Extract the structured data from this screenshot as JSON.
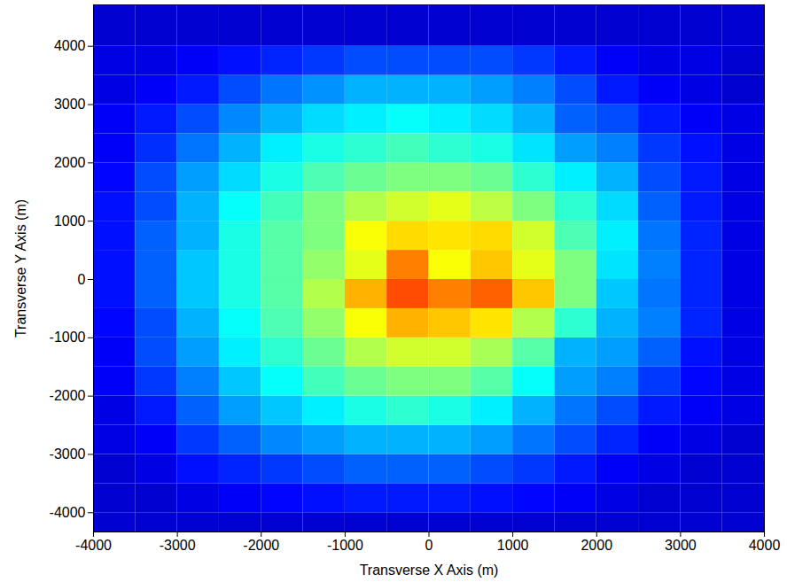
{
  "chart_data": {
    "type": "heatmap",
    "x_label": "Transverse X Axis (m)",
    "y_label": "Transverse Y Axis (m)",
    "xlim": [
      -4000,
      4000
    ],
    "ylim": [
      -4330,
      4710
    ],
    "xticks": [
      -4000,
      -3000,
      -2000,
      -1000,
      0,
      1000,
      2000,
      3000,
      4000
    ],
    "yticks": [
      -4000,
      -3000,
      -2000,
      -1000,
      0,
      1000,
      2000,
      3000,
      4000
    ],
    "x_edges": [
      -4000,
      -3500,
      -3000,
      -2500,
      -2000,
      -1500,
      -1000,
      -500,
      0,
      500,
      1000,
      1500,
      2000,
      2500,
      3000,
      3500,
      4000
    ],
    "y_edges": [
      -4500,
      -4000,
      -3500,
      -3000,
      -2500,
      -2000,
      -1500,
      -1000,
      -500,
      0,
      500,
      1000,
      1500,
      2000,
      2500,
      3000,
      3500,
      4000,
      4750
    ],
    "zlim": [
      0,
      1
    ],
    "z": [
      [
        0.08,
        0.08,
        0.08,
        0.08,
        0.08,
        0.08,
        0.08,
        0.08,
        0.08,
        0.08,
        0.08,
        0.08,
        0.08,
        0.08,
        0.08,
        0.08
      ],
      [
        0.08,
        0.08,
        0.1,
        0.12,
        0.13,
        0.14,
        0.15,
        0.15,
        0.15,
        0.14,
        0.13,
        0.12,
        0.1,
        0.08,
        0.08,
        0.08
      ],
      [
        0.08,
        0.1,
        0.14,
        0.16,
        0.18,
        0.2,
        0.22,
        0.22,
        0.22,
        0.2,
        0.18,
        0.15,
        0.12,
        0.1,
        0.08,
        0.08
      ],
      [
        0.1,
        0.12,
        0.18,
        0.22,
        0.26,
        0.28,
        0.3,
        0.3,
        0.3,
        0.28,
        0.24,
        0.2,
        0.16,
        0.12,
        0.1,
        0.08
      ],
      [
        0.1,
        0.15,
        0.22,
        0.28,
        0.32,
        0.36,
        0.4,
        0.42,
        0.4,
        0.36,
        0.3,
        0.24,
        0.2,
        0.15,
        0.12,
        0.1
      ],
      [
        0.12,
        0.18,
        0.25,
        0.32,
        0.38,
        0.44,
        0.48,
        0.5,
        0.5,
        0.46,
        0.38,
        0.28,
        0.25,
        0.18,
        0.13,
        0.1
      ],
      [
        0.12,
        0.2,
        0.28,
        0.36,
        0.42,
        0.48,
        0.55,
        0.58,
        0.58,
        0.54,
        0.46,
        0.3,
        0.28,
        0.22,
        0.14,
        0.1
      ],
      [
        0.13,
        0.2,
        0.3,
        0.38,
        0.45,
        0.52,
        0.62,
        0.7,
        0.68,
        0.65,
        0.55,
        0.42,
        0.3,
        0.25,
        0.16,
        0.1
      ],
      [
        0.14,
        0.22,
        0.32,
        0.4,
        0.46,
        0.55,
        0.7,
        0.8,
        0.75,
        0.78,
        0.68,
        0.5,
        0.32,
        0.24,
        0.16,
        0.1
      ],
      [
        0.14,
        0.22,
        0.32,
        0.4,
        0.46,
        0.52,
        0.6,
        0.75,
        0.62,
        0.68,
        0.6,
        0.5,
        0.35,
        0.25,
        0.16,
        0.1
      ],
      [
        0.14,
        0.22,
        0.3,
        0.4,
        0.46,
        0.5,
        0.62,
        0.66,
        0.65,
        0.66,
        0.58,
        0.45,
        0.36,
        0.24,
        0.16,
        0.1
      ],
      [
        0.14,
        0.2,
        0.3,
        0.38,
        0.44,
        0.5,
        0.55,
        0.58,
        0.6,
        0.56,
        0.5,
        0.42,
        0.34,
        0.22,
        0.15,
        0.1
      ],
      [
        0.13,
        0.2,
        0.28,
        0.34,
        0.4,
        0.45,
        0.48,
        0.5,
        0.5,
        0.48,
        0.42,
        0.36,
        0.3,
        0.2,
        0.15,
        0.1
      ],
      [
        0.12,
        0.17,
        0.24,
        0.3,
        0.36,
        0.4,
        0.42,
        0.44,
        0.42,
        0.4,
        0.35,
        0.28,
        0.25,
        0.18,
        0.14,
        0.1
      ],
      [
        0.12,
        0.15,
        0.2,
        0.26,
        0.3,
        0.34,
        0.36,
        0.38,
        0.36,
        0.34,
        0.3,
        0.22,
        0.2,
        0.15,
        0.12,
        0.1
      ],
      [
        0.1,
        0.12,
        0.15,
        0.2,
        0.24,
        0.27,
        0.3,
        0.3,
        0.3,
        0.28,
        0.25,
        0.2,
        0.15,
        0.12,
        0.1,
        0.08
      ],
      [
        0.1,
        0.1,
        0.12,
        0.14,
        0.16,
        0.18,
        0.2,
        0.2,
        0.2,
        0.2,
        0.18,
        0.15,
        0.12,
        0.1,
        0.1,
        0.08
      ],
      [
        0.08,
        0.08,
        0.08,
        0.08,
        0.08,
        0.08,
        0.08,
        0.08,
        0.08,
        0.08,
        0.08,
        0.08,
        0.08,
        0.08,
        0.08,
        0.08
      ]
    ]
  }
}
